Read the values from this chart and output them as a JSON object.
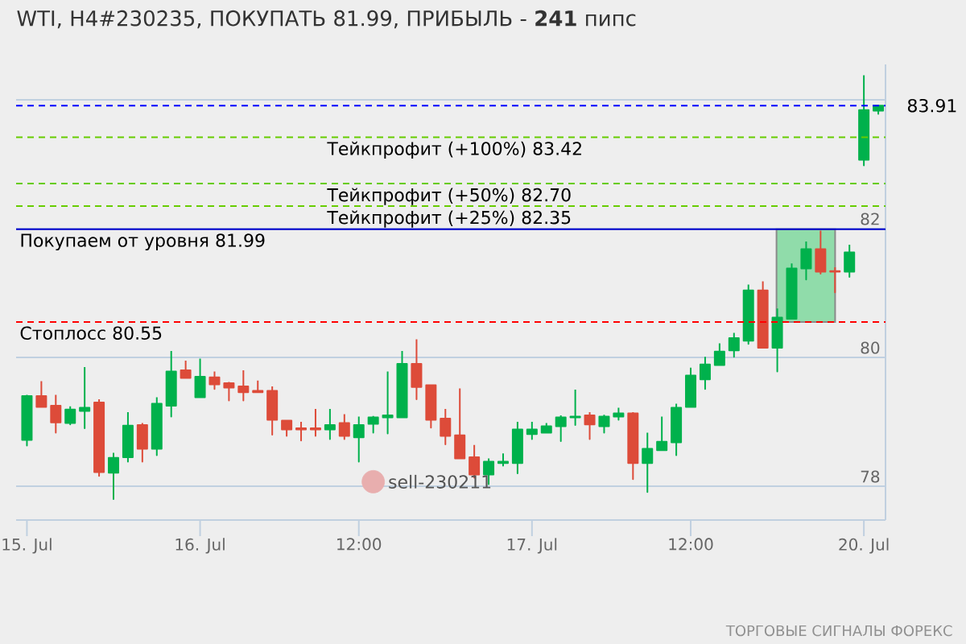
{
  "chart_data": {
    "type": "candlestick",
    "title": "WTI, H4#230235, ПОКУПАТЬ 81.99, ПРИБЫЛЬ - **241** пипс",
    "categories": [
      "15. Jul",
      null,
      null,
      null,
      null,
      null,
      null,
      null,
      null,
      null,
      null,
      null,
      "16. Jul",
      null,
      null,
      null,
      null,
      null,
      null,
      null,
      null,
      null,
      null,
      "12:00",
      null,
      null,
      null,
      null,
      null,
      null,
      null,
      null,
      null,
      null,
      null,
      "17. Jul",
      null,
      null,
      null,
      null,
      null,
      null,
      null,
      null,
      null,
      null,
      "12:00",
      null,
      null,
      null,
      null,
      null,
      null,
      null,
      null,
      null,
      null,
      null,
      "20. Jul",
      null
    ],
    "ohlc": [
      [
        78.72,
        79.42,
        78.63,
        79.4
      ],
      [
        79.4,
        79.63,
        79.23,
        79.23
      ],
      [
        79.25,
        79.42,
        78.83,
        78.99
      ],
      [
        78.98,
        79.24,
        78.96,
        79.19
      ],
      [
        79.17,
        79.85,
        78.9,
        79.22
      ],
      [
        79.3,
        79.35,
        78.16,
        78.22
      ],
      [
        78.21,
        78.52,
        77.8,
        78.44
      ],
      [
        78.45,
        79.15,
        78.38,
        78.94
      ],
      [
        78.95,
        78.98,
        78.38,
        78.58
      ],
      [
        78.58,
        79.38,
        78.48,
        79.28
      ],
      [
        79.25,
        80.1,
        79.08,
        79.78
      ],
      [
        79.8,
        79.95,
        79.68,
        79.68
      ],
      [
        79.38,
        79.98,
        79.38,
        79.7
      ],
      [
        79.69,
        79.78,
        79.51,
        79.58
      ],
      [
        79.6,
        79.62,
        79.33,
        79.53
      ],
      [
        79.55,
        79.8,
        79.33,
        79.46
      ],
      [
        79.48,
        79.64,
        79.46,
        79.46
      ],
      [
        79.48,
        79.55,
        78.8,
        79.03
      ],
      [
        79.02,
        79.02,
        78.78,
        78.88
      ],
      [
        78.9,
        79.0,
        78.71,
        78.88
      ],
      [
        78.9,
        79.2,
        78.78,
        78.88
      ],
      [
        78.88,
        79.2,
        78.73,
        78.95
      ],
      [
        78.98,
        79.12,
        78.73,
        78.78
      ],
      [
        78.76,
        79.08,
        78.38,
        78.95
      ],
      [
        78.97,
        79.09,
        78.83,
        79.07
      ],
      [
        79.07,
        79.78,
        78.82,
        79.1
      ],
      [
        79.07,
        80.1,
        79.07,
        79.9
      ],
      [
        79.9,
        80.28,
        79.35,
        79.54
      ],
      [
        79.57,
        79.57,
        78.91,
        79.03
      ],
      [
        79.05,
        79.2,
        78.65,
        78.78
      ],
      [
        78.79,
        79.52,
        78.43,
        78.43
      ],
      [
        78.45,
        78.64,
        78.13,
        78.18
      ],
      [
        78.18,
        78.43,
        78.03,
        78.38
      ],
      [
        78.36,
        78.51,
        78.32,
        78.38
      ],
      [
        78.36,
        79.0,
        78.2,
        78.88
      ],
      [
        78.81,
        79.0,
        78.73,
        78.88
      ],
      [
        78.83,
        78.98,
        78.83,
        78.93
      ],
      [
        78.93,
        79.1,
        78.7,
        79.07
      ],
      [
        79.07,
        79.5,
        78.95,
        79.08
      ],
      [
        79.1,
        79.15,
        78.73,
        78.96
      ],
      [
        78.93,
        79.11,
        78.83,
        79.08
      ],
      [
        79.08,
        79.22,
        79.03,
        79.13
      ],
      [
        79.13,
        79.15,
        78.11,
        78.36
      ],
      [
        78.36,
        78.83,
        77.91,
        78.58
      ],
      [
        78.56,
        79.08,
        78.56,
        78.69
      ],
      [
        78.68,
        79.28,
        78.48,
        79.22
      ],
      [
        79.23,
        79.84,
        79.23,
        79.72
      ],
      [
        79.66,
        80.01,
        79.51,
        79.89
      ],
      [
        79.88,
        80.22,
        79.88,
        80.09
      ],
      [
        80.11,
        80.38,
        80.01,
        80.3
      ],
      [
        80.26,
        81.13,
        80.21,
        81.04
      ],
      [
        81.04,
        81.18,
        80.15,
        80.15
      ],
      [
        80.15,
        80.76,
        79.78,
        80.62
      ],
      [
        80.6,
        81.46,
        80.6,
        81.38
      ],
      [
        81.38,
        81.8,
        81.21,
        81.68
      ],
      [
        81.68,
        81.97,
        81.3,
        81.33
      ],
      [
        81.34,
        81.4,
        81.01,
        81.33
      ],
      [
        81.33,
        81.75,
        81.25,
        81.63
      ],
      [
        83.07,
        84.38,
        82.98,
        83.84
      ],
      [
        83.83,
        83.91,
        83.78,
        83.91
      ]
    ],
    "colors": [
      "#00b14c",
      "#dd4b39",
      "#dd4b39",
      "#00b14c",
      "#00b14c",
      "#dd4b39",
      "#00b14c",
      "#00b14c",
      "#dd4b39",
      "#00b14c",
      "#00b14c",
      "#dd4b39",
      "#00b14c",
      "#dd4b39",
      "#dd4b39",
      "#dd4b39",
      "#dd4b39",
      "#dd4b39",
      "#dd4b39",
      "#dd4b39",
      "#dd4b39",
      "#00b14c",
      "#dd4b39",
      "#00b14c",
      "#00b14c",
      "#00b14c",
      "#00b14c",
      "#dd4b39",
      "#dd4b39",
      "#dd4b39",
      "#dd4b39",
      "#dd4b39",
      "#00b14c",
      "#00b14c",
      "#00b14c",
      "#00b14c",
      "#00b14c",
      "#00b14c",
      "#00b14c",
      "#dd4b39",
      "#00b14c",
      "#00b14c",
      "#dd4b39",
      "#00b14c",
      "#00b14c",
      "#00b14c",
      "#00b14c",
      "#00b14c",
      "#00b14c",
      "#00b14c",
      "#00b14c",
      "#dd4b39",
      "#00b14c",
      "#00b14c",
      "#00b14c",
      "#dd4b39",
      "#dd4b39",
      "#00b14c",
      "#00b14c",
      "#00b14c"
    ],
    "series": [
      {
        "type": "scatter",
        "name": "sell-230211",
        "color": "#e8aeae",
        "values": [
          null,
          null,
          null,
          null,
          null,
          null,
          null,
          null,
          null,
          null,
          null,
          null,
          null,
          null,
          null,
          null,
          null,
          null,
          null,
          null,
          null,
          null,
          null,
          null,
          78.07,
          null,
          null,
          null,
          null,
          null,
          null,
          null,
          null,
          null,
          null,
          null,
          null,
          null,
          null,
          null,
          null,
          null,
          null,
          null,
          null,
          null,
          null,
          null,
          null,
          null,
          null,
          null,
          null,
          null,
          null,
          null,
          null,
          null,
          null,
          null
        ]
      }
    ],
    "marker": "circle",
    "ylim": [
      77.475,
      84.55
    ],
    "yticks": [
      78,
      80,
      82,
      {
        "value": 84,
        "label": null
      }
    ],
    "grid": "y",
    "ref_lines": [
      {
        "axis": "y",
        "value": 83.91,
        "label": "83.91",
        "color": "#0000ff",
        "line_style": "dashed"
      },
      {
        "axis": "y",
        "value": 83.42,
        "label": "Тейкпрофит (+100%) 83.42",
        "color": "#66cc00",
        "line_style": "dashed"
      },
      {
        "axis": "y",
        "value": 82.7,
        "label": "Тейкпрофит (+50%) 82.70",
        "color": "#66cc00",
        "line_style": "dashed"
      },
      {
        "axis": "y",
        "value": 82.35,
        "label": "Тейкпрофит (+25%) 82.35",
        "color": "#66cc00",
        "line_style": "dashed"
      },
      {
        "axis": "y",
        "value": 81.99,
        "label": "Покупаем от уровня 81.99",
        "color": "#0000cc",
        "line_style": "solid"
      },
      {
        "axis": "y",
        "value": 80.55,
        "label": "Стоплосс 80.55",
        "color": "#ff0000",
        "line_style": "dashed"
      }
    ],
    "bands": [
      {
        "axis": "y",
        "from": 80.55,
        "to": 81.99,
        "color": "#90dcaa"
      }
    ],
    "annotations": [
      "ТОРГОВЫЕ СИГНАЛЫ ФОРЕКС"
    ]
  }
}
